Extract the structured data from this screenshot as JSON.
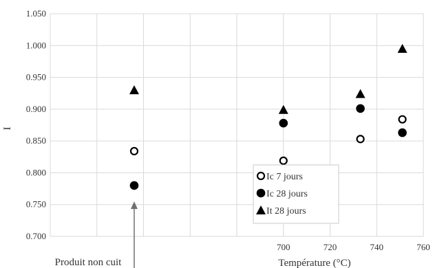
{
  "chart_data": {
    "type": "scatter",
    "xlim": [
      600,
      760
    ],
    "ylim": [
      0.7,
      1.05
    ],
    "x_ticks": [
      {
        "value": 700,
        "label": "700"
      },
      {
        "value": 720,
        "label": "720"
      },
      {
        "value": 740,
        "label": "740"
      },
      {
        "value": 760,
        "label": "760"
      }
    ],
    "x_gridlines": [
      620,
      640,
      660,
      680,
      700,
      720,
      740,
      760
    ],
    "y_ticks": [
      {
        "value": 0.7,
        "label": "0.700"
      },
      {
        "value": 0.75,
        "label": "0.750"
      },
      {
        "value": 0.8,
        "label": "0.800"
      },
      {
        "value": 0.85,
        "label": "0.850"
      },
      {
        "value": 0.9,
        "label": "0.900"
      },
      {
        "value": 0.95,
        "label": "0.950"
      },
      {
        "value": 1.0,
        "label": "1.000"
      },
      {
        "value": 1.05,
        "label": "1.050"
      }
    ],
    "xlabel": "Température (°C)",
    "ylabel": "I",
    "grid": true,
    "legend_position": "bottom-center",
    "series": [
      {
        "name": "Ic 7 jours",
        "marker": "circle-open",
        "color": "#000000",
        "points": [
          {
            "x": 636,
            "y": 0.834
          },
          {
            "x": 700,
            "y": 0.819
          },
          {
            "x": 733,
            "y": 0.853
          },
          {
            "x": 751,
            "y": 0.884
          }
        ]
      },
      {
        "name": "Ic 28 jours",
        "marker": "circle-filled",
        "color": "#000000",
        "points": [
          {
            "x": 636,
            "y": 0.78
          },
          {
            "x": 700,
            "y": 0.878
          },
          {
            "x": 733,
            "y": 0.901
          },
          {
            "x": 751,
            "y": 0.863
          }
        ]
      },
      {
        "name": "It 28 jours",
        "marker": "triangle-filled",
        "color": "#000000",
        "points": [
          {
            "x": 636,
            "y": 0.93
          },
          {
            "x": 700,
            "y": 0.899
          },
          {
            "x": 733,
            "y": 0.924
          },
          {
            "x": 751,
            "y": 0.995
          }
        ]
      }
    ],
    "annotation": {
      "text": "Produit non cuit",
      "x": 636,
      "y_tail": 0.645,
      "y_head": 0.755
    }
  }
}
